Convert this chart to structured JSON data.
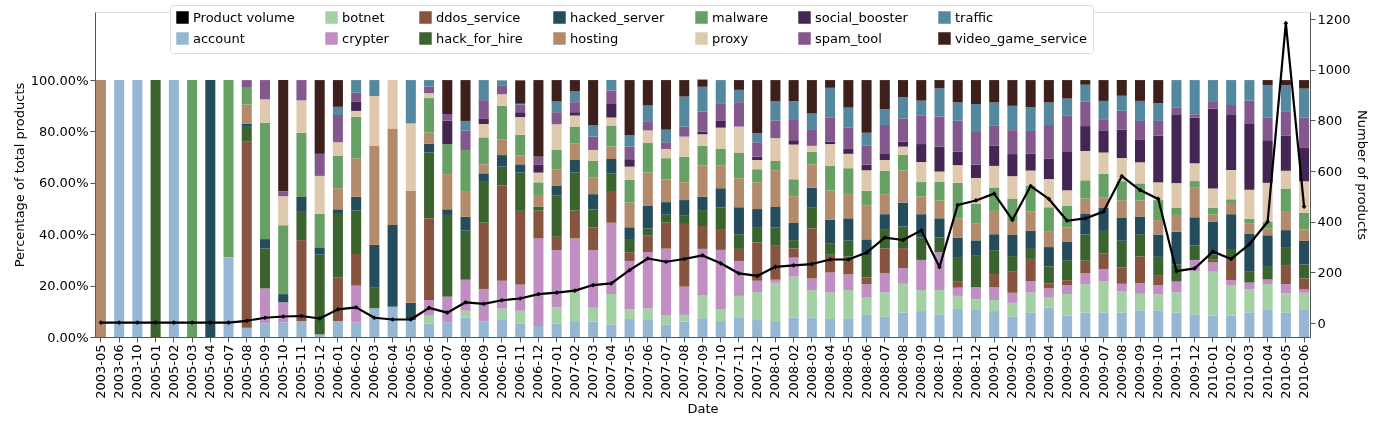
{
  "chart_data": {
    "type": "bar",
    "stacked": true,
    "xlabel": "Date",
    "ylabel": "Percentage of total products",
    "y2label": "Number of products",
    "legend": "top",
    "grid": false,
    "marker": "diamond",
    "categories": [
      "2003-05",
      "2003-06",
      "2003-10",
      "2005-01",
      "2005-02",
      "2005-03",
      "2005-04",
      "2005-07",
      "2005-08",
      "2005-09",
      "2005-10",
      "2005-11",
      "2005-12",
      "2006-01",
      "2006-02",
      "2006-03",
      "2006-04",
      "2006-05",
      "2006-06",
      "2006-07",
      "2006-08",
      "2006-09",
      "2006-10",
      "2006-11",
      "2006-12",
      "2007-01",
      "2007-02",
      "2007-03",
      "2007-04",
      "2007-05",
      "2007-06",
      "2007-07",
      "2007-08",
      "2007-09",
      "2007-10",
      "2007-11",
      "2007-12",
      "2008-01",
      "2008-02",
      "2008-03",
      "2008-04",
      "2008-05",
      "2008-06",
      "2008-07",
      "2008-08",
      "2008-09",
      "2008-10",
      "2008-11",
      "2008-12",
      "2009-01",
      "2009-02",
      "2009-03",
      "2009-04",
      "2009-05",
      "2009-06",
      "2009-07",
      "2009-08",
      "2009-09",
      "2009-10",
      "2009-11",
      "2009-12",
      "2010-01",
      "2010-02",
      "2010-03",
      "2010-04",
      "2010-05",
      "2010-06"
    ],
    "ylim": [
      0,
      126.5
    ],
    "yticks": [
      {
        "value": 0,
        "label": "0.00%"
      },
      {
        "value": 20,
        "label": "20.00%"
      },
      {
        "value": 40,
        "label": "40.00%"
      },
      {
        "value": 60,
        "label": "60.00%"
      },
      {
        "value": 80,
        "label": "80.00%"
      },
      {
        "value": 100,
        "label": "100.00%"
      }
    ],
    "y2lim": [
      -55,
      1228
    ],
    "y2ticks": [
      0,
      200,
      400,
      600,
      800,
      1000,
      1200
    ],
    "series": [
      {
        "name": "Product volume",
        "type": "line",
        "axis": "y2",
        "color": "#000000",
        "values": [
          2,
          2,
          2,
          2,
          2,
          2,
          2,
          2,
          9,
          21,
          26,
          28,
          18,
          54,
          62,
          21,
          14,
          14,
          60,
          41,
          82,
          76,
          90,
          97,
          114,
          120,
          128,
          150,
          157,
          209,
          255,
          242,
          253,
          267,
          236,
          196,
          186,
          222,
          228,
          233,
          251,
          251,
          278,
          337,
          328,
          366,
          221,
          466,
          484,
          511,
          407,
          541,
          490,
          404,
          413,
          440,
          580,
          525,
          490,
          205,
          216,
          282,
          253,
          311,
          400,
          1184,
          460
        ]
      },
      {
        "name": "account",
        "color": "#95b7d3",
        "values": [
          null,
          100,
          100,
          null,
          100,
          null,
          null,
          31,
          3.6,
          5.3,
          5.7,
          6.2,
          1,
          6.2,
          5.6,
          11.2,
          11.8,
          6.6,
          5.3,
          5.7,
          7.5,
          6,
          6.6,
          5.3,
          4.3,
          5.3,
          6.2,
          6,
          4.9,
          7,
          6.6,
          4.9,
          6,
          7.3,
          6.2,
          7.7,
          6.6,
          6.2,
          7.5,
          7.5,
          7,
          7.3,
          8.6,
          7.9,
          9.5,
          10.1,
          8.8,
          10.9,
          10.5,
          10.1,
          7.9,
          9.6,
          11.4,
          8.3,
          9.5,
          9.5,
          9.5,
          10.4,
          10.4,
          9.5,
          8.8,
          8.3,
          8.3,
          9.6,
          10.5,
          9.6,
          10.5
        ]
      },
      {
        "name": "botnet",
        "color": "#a3d1a3",
        "values": [
          null,
          null,
          null,
          null,
          null,
          null,
          null,
          null,
          null,
          null,
          null,
          null,
          null,
          null,
          null,
          null,
          null,
          null,
          3,
          null,
          2.7,
          null,
          4.5,
          4.9,
          null,
          6.2,
          11.4,
          5.4,
          11.8,
          3.8,
          4.5,
          3.6,
          2.6,
          8.8,
          4.7,
          8.3,
          10.9,
          14.9,
          16,
          10.8,
          10.4,
          11,
          6.7,
          9.5,
          11.2,
          8.2,
          9.5,
          5.1,
          4.2,
          4.3,
          5.4,
          7.7,
          3.9,
          8.4,
          11,
          12.1,
          8.2,
          6.4,
          6.2,
          7.9,
          16.9,
          17.1,
          11.7,
          8.9,
          10.1,
          7.4,
          6.7
        ]
      },
      {
        "name": "crypter",
        "color": "#c18ec4",
        "values": [
          null,
          null,
          null,
          null,
          null,
          null,
          null,
          null,
          null,
          13.6,
          7.8,
          null,
          null,
          null,
          14.4,
          null,
          null,
          null,
          6.1,
          10,
          12.1,
          12.7,
          10.8,
          10.2,
          34.1,
          22.3,
          20.8,
          22.4,
          27.8,
          18.8,
          22,
          25.9,
          11,
          18.2,
          23,
          13.6,
          4.4,
          1.2,
          7.4,
          4.5,
          7.7,
          6.1,
          5.2,
          7.4,
          6.1,
          11.7,
          14.7,
          3.2,
          4.7,
          4.9,
          3.9,
          4.5,
          3.6,
          3.5,
          4.3,
          4.8,
          3,
          4.2,
          3.6,
          4.2,
          4.3,
          3.6,
          2.2,
          2.7,
          1.8,
          3.6,
          1.3
        ]
      },
      {
        "name": "ddos_service",
        "color": "#86543f",
        "values": [
          null,
          null,
          null,
          null,
          null,
          null,
          null,
          null,
          72.4,
          null,
          null,
          31.5,
          null,
          16.9,
          12.3,
          null,
          null,
          null,
          31.8,
          null,
          null,
          25.8,
          37,
          28.7,
          10.8,
          5.2,
          10.8,
          8.8,
          12.3,
          3.4,
          6.5,
          10.1,
          24.4,
          8.9,
          7.8,
          4.7,
          14.9,
          13.2,
          3.6,
          19.5,
          6.9,
          6.9,
          2.7,
          9.7,
          7.8,
          null,
          null,
          2.3,
          null,
          5.2,
          8.2,
          8.6,
          1.9,
          1.9,
          4.9,
          6.2,
          6.4,
          10.4,
          3.9,
          null,
          null,
          1.3,
          7.8,
          null,
          null,
          7.1,
          4.3
        ]
      },
      {
        "name": "hack_for_hire",
        "color": "#3b632e",
        "values": [
          null,
          null,
          null,
          100,
          null,
          null,
          null,
          null,
          5.8,
          15.6,
          null,
          11,
          31.2,
          24.8,
          16.9,
          8.2,
          null,
          null,
          25.6,
          31.8,
          19.1,
          16.2,
          7.4,
          14.9,
          1.6,
          16,
          14.9,
          7,
          6.9,
          4.8,
          2.6,
          3.1,
          3.2,
          6.2,
          8.7,
          5.7,
          5.7,
          7.1,
          3.2,
          8,
          4.3,
          6.2,
          8.7,
          7.5,
          8.4,
          8.7,
          5.7,
          9.3,
          12.2,
          9.3,
          6.1,
          3.9,
          6.7,
          7.8,
          10.2,
          8.7,
          10.4,
          8.4,
          7.1,
          6.7,
          5.6,
          1.8,
          3.9,
          4.2,
          4.9,
          7,
          5.4
        ]
      },
      {
        "name": "hacked_server",
        "color": "#244c5a",
        "values": [
          null,
          null,
          null,
          null,
          null,
          null,
          100,
          null,
          1.3,
          3.6,
          3.2,
          5.8,
          2.7,
          1.8,
          5.4,
          16.5,
          31.8,
          6.7,
          3.4,
          2.2,
          5.4,
          3,
          4.5,
          3.2,
          null,
          3.8,
          4.8,
          6,
          5.6,
          4.9,
          8.8,
          4.9,
          6.1,
          5.2,
          7.5,
          10.5,
          7.3,
          8,
          6.7,
          7.8,
          9.3,
          8.7,
          6.1,
          5.8,
          9.3,
          9.1,
          7.5,
          7.9,
          6,
          6.2,
          8.2,
          7.1,
          7.5,
          7.1,
          8.2,
          9.1,
          8.8,
          7.1,
          8.7,
          12.7,
          11,
          12.7,
          13.9,
          14.7,
          12.3,
          6.9,
          9.2
        ]
      },
      {
        "name": "hosting",
        "color": "#b38a6c",
        "values": [
          100,
          null,
          null,
          null,
          null,
          null,
          null,
          null,
          7.4,
          null,
          null,
          null,
          null,
          8.2,
          14.9,
          38.6,
          37.6,
          43.6,
          4.4,
          13.7,
          10,
          3.5,
          6.1,
          3.5,
          4.5,
          6.5,
          6.5,
          6.4,
          4.8,
          9.6,
          13,
          8.8,
          6.9,
          12.1,
          8.8,
          11.3,
          10.4,
          14.3,
          10.4,
          9.1,
          11.4,
          9.5,
          13.1,
          7.8,
          12.5,
          6.9,
          6.9,
          7.4,
          6.5,
          9.1,
          5.4,
          7.4,
          6.2,
          5.6,
          5.8,
          4,
          6.9,
          6.2,
          5.6,
          6.5,
          11.5,
          2.9,
          4,
          4.2,
          2.6,
          7.1,
          4.5
        ]
      },
      {
        "name": "malware",
        "color": "#67a065",
        "values": [
          null,
          null,
          null,
          null,
          null,
          100,
          null,
          69,
          6.5,
          45.3,
          26.8,
          25,
          13,
          12.7,
          16.2,
          null,
          null,
          null,
          13.4,
          11.7,
          16,
          10.5,
          13.1,
          8,
          4.9,
          7.5,
          6.5,
          6.5,
          8.2,
          8.8,
          11.5,
          8.3,
          10,
          7.7,
          6.5,
          10,
          5.1,
          3.6,
          6.6,
          4.9,
          9.7,
          10,
          5.8,
          9.1,
          6.1,
          5.6,
          7.4,
          13.9,
          7.7,
          9.1,
          8.8,
          10,
          9.3,
          8.4,
          7.1,
          9.1,
          7.4,
          6.7,
          7.8,
          2.9,
          2.6,
          2.6,
          1.8,
          1.7,
          2.6,
          9.1,
          6.4
        ]
      },
      {
        "name": "proxy",
        "color": "#dfc9ae",
        "values": [
          null,
          null,
          null,
          null,
          null,
          null,
          null,
          null,
          null,
          9.1,
          11.3,
          12.6,
          14.8,
          5.2,
          2.3,
          19.3,
          18.8,
          26.2,
          1.9,
          null,
          null,
          5.2,
          4.5,
          6.9,
          3.8,
          10,
          4.3,
          4.3,
          3.1,
          5.2,
          4.9,
          3.6,
          7.8,
          4.5,
          8.3,
          10.1,
          3.6,
          8.9,
          13.5,
          2.3,
          8.4,
          5.6,
          8,
          4.2,
          3.2,
          7.8,
          3.9,
          6.9,
          10.1,
          8.4,
          8.7,
          6,
          11,
          6.1,
          11.4,
          8.3,
          9.1,
          8.2,
          6.9,
          9.5,
          6.9,
          7.5,
          11.4,
          11.3,
          15.2,
          6.9,
          12.3
        ]
      },
      {
        "name": "social_booster",
        "color": "#432752",
        "values": [
          null,
          null,
          null,
          null,
          null,
          null,
          null,
          null,
          null,
          null,
          null,
          null,
          null,
          null,
          3.5,
          null,
          null,
          null,
          null,
          9.1,
          null,
          2.2,
          null,
          1.9,
          3,
          null,
          1.3,
          null,
          5.3,
          2.9,
          null,
          null,
          null,
          1,
          2.6,
          null,
          1.3,
          null,
          1.7,
          null,
          0.9,
          1.9,
          2.2,
          2.6,
          1.9,
          7,
          9.7,
          5.2,
          5.2,
          7.8,
          8.6,
          6.5,
          8,
          14.9,
          9.7,
          8.4,
          11,
          8.7,
          18.2,
          26.8,
          17.8,
          31.1,
          21.4,
          25.6,
          16.6,
          13.6,
          13
        ]
      },
      {
        "name": "spam_tool",
        "color": "#85578f",
        "values": [
          null,
          null,
          null,
          null,
          null,
          null,
          null,
          null,
          3,
          7.5,
          1.9,
          7.9,
          8.6,
          10.6,
          3.6,
          null,
          null,
          null,
          2.6,
          2.6,
          7.5,
          7.1,
          3.5,
          2.9,
          3.2,
          4.7,
          3.9,
          5.2,
          5.2,
          4.9,
          3.6,
          2.6,
          3.9,
          7.8,
          6.9,
          9.5,
          5.6,
          6.9,
          8.2,
          6.5,
          9.5,
          8.4,
          7.5,
          11,
          9.1,
          11.2,
          11.7,
          12.1,
          12.7,
          7.8,
          9.3,
          8.9,
          13,
          14.3,
          9.6,
          4.3,
          7.4,
          7.4,
          5.7,
          2.5,
          1.3,
          2.6,
          3.9,
          9.1,
          8.7,
          9.6,
          11.8
        ]
      },
      {
        "name": "traffic",
        "color": "#53889f",
        "values": [
          null,
          null,
          null,
          null,
          null,
          null,
          null,
          null,
          null,
          null,
          null,
          null,
          null,
          3.2,
          4.9,
          6.2,
          null,
          16.9,
          2.5,
          null,
          3.8,
          7.8,
          1.9,
          0.4,
          null,
          4.2,
          4.2,
          4.5,
          4.1,
          4.5,
          6.1,
          4.9,
          11.7,
          9.7,
          9,
          4.8,
          3.6,
          7.4,
          7,
          6.1,
          11.5,
          7.7,
          4.9,
          6.2,
          8.2,
          5.7,
          11,
          7.1,
          10.9,
          9.1,
          9.5,
          9.2,
          8.8,
          6.5,
          6.5,
          7.4,
          5.8,
          7.8,
          6.9,
          10.8,
          13.3,
          8.5,
          9.7,
          8,
          12.8,
          10.1,
          11.3
        ]
      },
      {
        "name": "video_game_service",
        "color": "#3d1f1b",
        "values": [
          null,
          null,
          null,
          null,
          null,
          null,
          null,
          null,
          null,
          null,
          43.3,
          null,
          28.7,
          10.4,
          null,
          null,
          null,
          null,
          null,
          13.2,
          15.9,
          null,
          null,
          9.1,
          29.8,
          8.3,
          4.4,
          17.5,
          null,
          21.4,
          9.9,
          19.3,
          6.4,
          2.8,
          null,
          3.8,
          20.6,
          8.3,
          8.2,
          13,
          3,
          10.7,
          20.5,
          11.3,
          6.7,
          8,
          3.2,
          8.7,
          9.3,
          8.7,
          10,
          10.6,
          8.7,
          7.2,
          1.8,
          8.1,
          6.1,
          8.1,
          9,
          null,
          null,
          null,
          null,
          null,
          1.9,
          2,
          3.3
        ]
      }
    ]
  }
}
